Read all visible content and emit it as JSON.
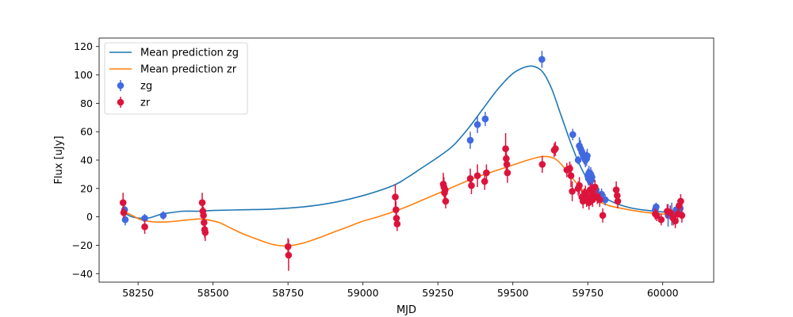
{
  "chart_data": {
    "type": "scatter",
    "xlabel": "MJD",
    "ylabel": "Flux [uJy]",
    "xlim": [
      58120,
      60170
    ],
    "ylim": [
      -46,
      126
    ],
    "xticks": [
      58250,
      58500,
      58750,
      59000,
      59250,
      59500,
      59750,
      60000
    ],
    "yticks": [
      -40,
      -20,
      0,
      20,
      40,
      60,
      80,
      100,
      120
    ],
    "grid": false,
    "legend_position": "top-left",
    "colors": {
      "zg_line": "#1f77b4",
      "zr_line": "#ff7f0e",
      "zg_points": "#4169e1",
      "zr_points": "#dc143c"
    },
    "lines": [
      {
        "name": "Mean prediction zg",
        "x": [
          58200,
          58230,
          58260,
          58280,
          58300,
          58330,
          58360,
          58400,
          58450,
          58500,
          58600,
          58700,
          58800,
          58900,
          59000,
          59100,
          59150,
          59200,
          59250,
          59300,
          59350,
          59400,
          59450,
          59500,
          59540,
          59570,
          59600,
          59630,
          59660,
          59690,
          59720,
          59750,
          59780,
          59810,
          59850,
          59900,
          59950,
          60000,
          60050,
          60070
        ],
        "y": [
          3,
          0,
          -1,
          -1,
          0,
          2,
          3,
          4,
          4,
          4.5,
          5,
          5.5,
          7,
          10,
          15,
          22,
          28,
          35,
          42,
          50,
          62,
          76,
          90,
          101,
          105.5,
          106,
          102,
          90,
          72,
          54,
          38,
          26,
          18,
          13,
          9,
          6,
          4.5,
          3.5,
          3,
          3
        ]
      },
      {
        "name": "Mean prediction zr",
        "x": [
          58200,
          58230,
          58260,
          58300,
          58350,
          58400,
          58450,
          58480,
          58520,
          58560,
          58600,
          58650,
          58700,
          58750,
          58800,
          58850,
          58900,
          58950,
          59000,
          59050,
          59100,
          59150,
          59200,
          59250,
          59300,
          59350,
          59400,
          59450,
          59500,
          59550,
          59600,
          59640,
          59670,
          59700,
          59730,
          59760,
          59790,
          59820,
          59850,
          59900,
          59950,
          60000,
          60050,
          60070
        ],
        "y": [
          4,
          1,
          -2,
          -3.5,
          -3.5,
          -2.5,
          -1.5,
          -2,
          -4,
          -8,
          -12,
          -16,
          -19.5,
          -20.5,
          -18.5,
          -15,
          -11,
          -7,
          -3,
          0,
          3.5,
          7.5,
          12,
          16.5,
          21,
          25.5,
          29.5,
          33,
          36.5,
          40,
          42.5,
          41,
          35,
          27,
          19.5,
          14,
          10.5,
          8,
          6.5,
          4.5,
          3,
          2,
          1.5,
          1.5
        ]
      }
    ],
    "series": [
      {
        "name": "zg",
        "x": [
          58205,
          58207,
          58272,
          58334,
          59358,
          59382,
          59408,
          59597,
          59700,
          59718,
          59722,
          59726,
          59730,
          59734,
          59738,
          59742,
          59746,
          59748,
          59750,
          59752,
          59754,
          59756,
          59758,
          59760,
          59762,
          59764,
          59766,
          59778,
          59796,
          59808,
          59975,
          59978,
          60018,
          60030,
          60045,
          60052,
          60058
        ],
        "y": [
          5,
          -2,
          -1,
          1,
          54,
          65,
          69,
          111,
          58,
          40,
          50,
          48,
          46,
          44,
          42,
          40,
          41,
          43,
          29,
          27,
          31,
          28,
          25,
          30,
          26,
          28,
          20,
          19,
          16,
          12,
          5,
          7,
          1,
          2,
          5,
          4,
          6
        ],
        "err": [
          4,
          4,
          3,
          3,
          6,
          6,
          5,
          6,
          4,
          3,
          6,
          6,
          5,
          5,
          5,
          5,
          5,
          5,
          5,
          5,
          5,
          5,
          5,
          5,
          5,
          5,
          5,
          4,
          4,
          4,
          3,
          3,
          8,
          8,
          3,
          3,
          3
        ]
      },
      {
        "name": "zr",
        "x": [
          58200,
          58202,
          58272,
          58464,
          58466,
          58468,
          58470,
          58472,
          58474,
          58750,
          58752,
          59108,
          59110,
          59112,
          59114,
          59268,
          59270,
          59272,
          59274,
          59276,
          59358,
          59362,
          59382,
          59406,
          59412,
          59476,
          59478,
          59480,
          59482,
          59598,
          59638,
          59642,
          59680,
          59690,
          59694,
          59698,
          59718,
          59722,
          59730,
          59734,
          59738,
          59742,
          59746,
          59750,
          59754,
          59758,
          59762,
          59766,
          59770,
          59774,
          59782,
          59790,
          59800,
          59845,
          59848,
          59850,
          59975,
          59980,
          59995,
          60015,
          60025,
          60035,
          60042,
          60050,
          60055,
          60060,
          60064
        ],
        "y": [
          10,
          3,
          -7,
          10,
          4,
          1,
          -4,
          -9,
          -11,
          -21,
          -27,
          14,
          5,
          -1,
          -5,
          23,
          21,
          17,
          19,
          11,
          27,
          22,
          29,
          25,
          31,
          48,
          41,
          37,
          31,
          37,
          47,
          48,
          33,
          34,
          29,
          18,
          20,
          22,
          14,
          11,
          15,
          17,
          12,
          14,
          10,
          19,
          18,
          12,
          15,
          21,
          14,
          12,
          1,
          19,
          15,
          11,
          2,
          1,
          -2,
          4,
          3,
          -1,
          -3,
          2,
          8,
          11,
          1
        ],
        "err": [
          7,
          4,
          5,
          7,
          5,
          6,
          5,
          6,
          6,
          6,
          11,
          9,
          6,
          5,
          5,
          8,
          7,
          6,
          6,
          5,
          7,
          6,
          8,
          6,
          6,
          11,
          8,
          7,
          7,
          6,
          5,
          5,
          5,
          5,
          8,
          7,
          5,
          6,
          5,
          5,
          5,
          5,
          5,
          5,
          5,
          5,
          5,
          5,
          5,
          5,
          5,
          5,
          5,
          6,
          5,
          5,
          4,
          4,
          4,
          5,
          5,
          5,
          5,
          5,
          5,
          5,
          5
        ]
      }
    ],
    "legend": [
      {
        "label": "Mean prediction zg",
        "kind": "line",
        "color": "#1f77b4"
      },
      {
        "label": "Mean prediction zr",
        "kind": "line",
        "color": "#ff7f0e"
      },
      {
        "label": "zg",
        "kind": "errorbar",
        "color": "#4169e1"
      },
      {
        "label": "zr",
        "kind": "errorbar",
        "color": "#dc143c"
      }
    ]
  }
}
